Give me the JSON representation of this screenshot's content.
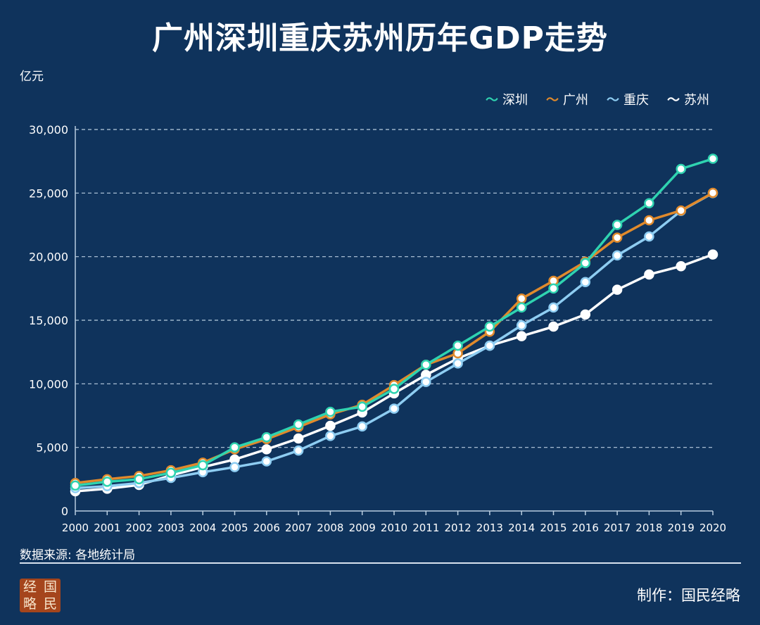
{
  "chart_data": {
    "type": "line",
    "title": "广州深圳重庆苏州历年GDP走势",
    "ylabel": "亿元",
    "xlabel": "",
    "ylim": [
      0,
      30000
    ],
    "yticks": [
      "0",
      "5,000",
      "10,000",
      "15,000",
      "20,000",
      "25,000",
      "30,000"
    ],
    "ytick_values": [
      0,
      5000,
      10000,
      15000,
      20000,
      25000,
      30000
    ],
    "grid": true,
    "legend_position": "top-right",
    "x": [
      "2000",
      "2001",
      "2002",
      "2003",
      "2004",
      "2005",
      "2006",
      "2007",
      "2008",
      "2009",
      "2010",
      "2011",
      "2012",
      "2013",
      "2014",
      "2015",
      "2016",
      "2017",
      "2018",
      "2019",
      "2020"
    ],
    "series": [
      {
        "name": "深圳",
        "color": "#2fd3b0",
        "values": [
          2000,
          2300,
          2500,
          3000,
          3600,
          5000,
          5800,
          6800,
          7800,
          8200,
          9600,
          11500,
          13000,
          14500,
          16000,
          17500,
          19500,
          22500,
          24200,
          26900,
          27700
        ]
      },
      {
        "name": "广州",
        "color": "#e08a2c",
        "values": [
          2200,
          2500,
          2750,
          3200,
          3800,
          4850,
          5650,
          6600,
          7600,
          8350,
          9900,
          11500,
          12400,
          14100,
          16700,
          18100,
          19600,
          21500,
          22860,
          23630,
          25020
        ]
      },
      {
        "name": "重庆",
        "color": "#8ecdf2",
        "values": [
          1800,
          1950,
          2200,
          2600,
          3050,
          3450,
          3900,
          4750,
          5900,
          6650,
          8050,
          10150,
          11600,
          13000,
          14600,
          16000,
          18000,
          20100,
          21590,
          23600,
          25000
        ]
      },
      {
        "name": "苏州",
        "color": "#ffffff",
        "values": [
          1550,
          1750,
          2050,
          2800,
          3450,
          4050,
          4850,
          5700,
          6700,
          7750,
          9250,
          10700,
          12000,
          13000,
          13750,
          14500,
          15450,
          17400,
          18600,
          19250,
          20170
        ]
      }
    ]
  },
  "footer": {
    "source": "数据来源: 各地统计局",
    "maker": "制作：国民经略",
    "logo_chars": [
      "经",
      "国",
      "略",
      "民"
    ]
  }
}
